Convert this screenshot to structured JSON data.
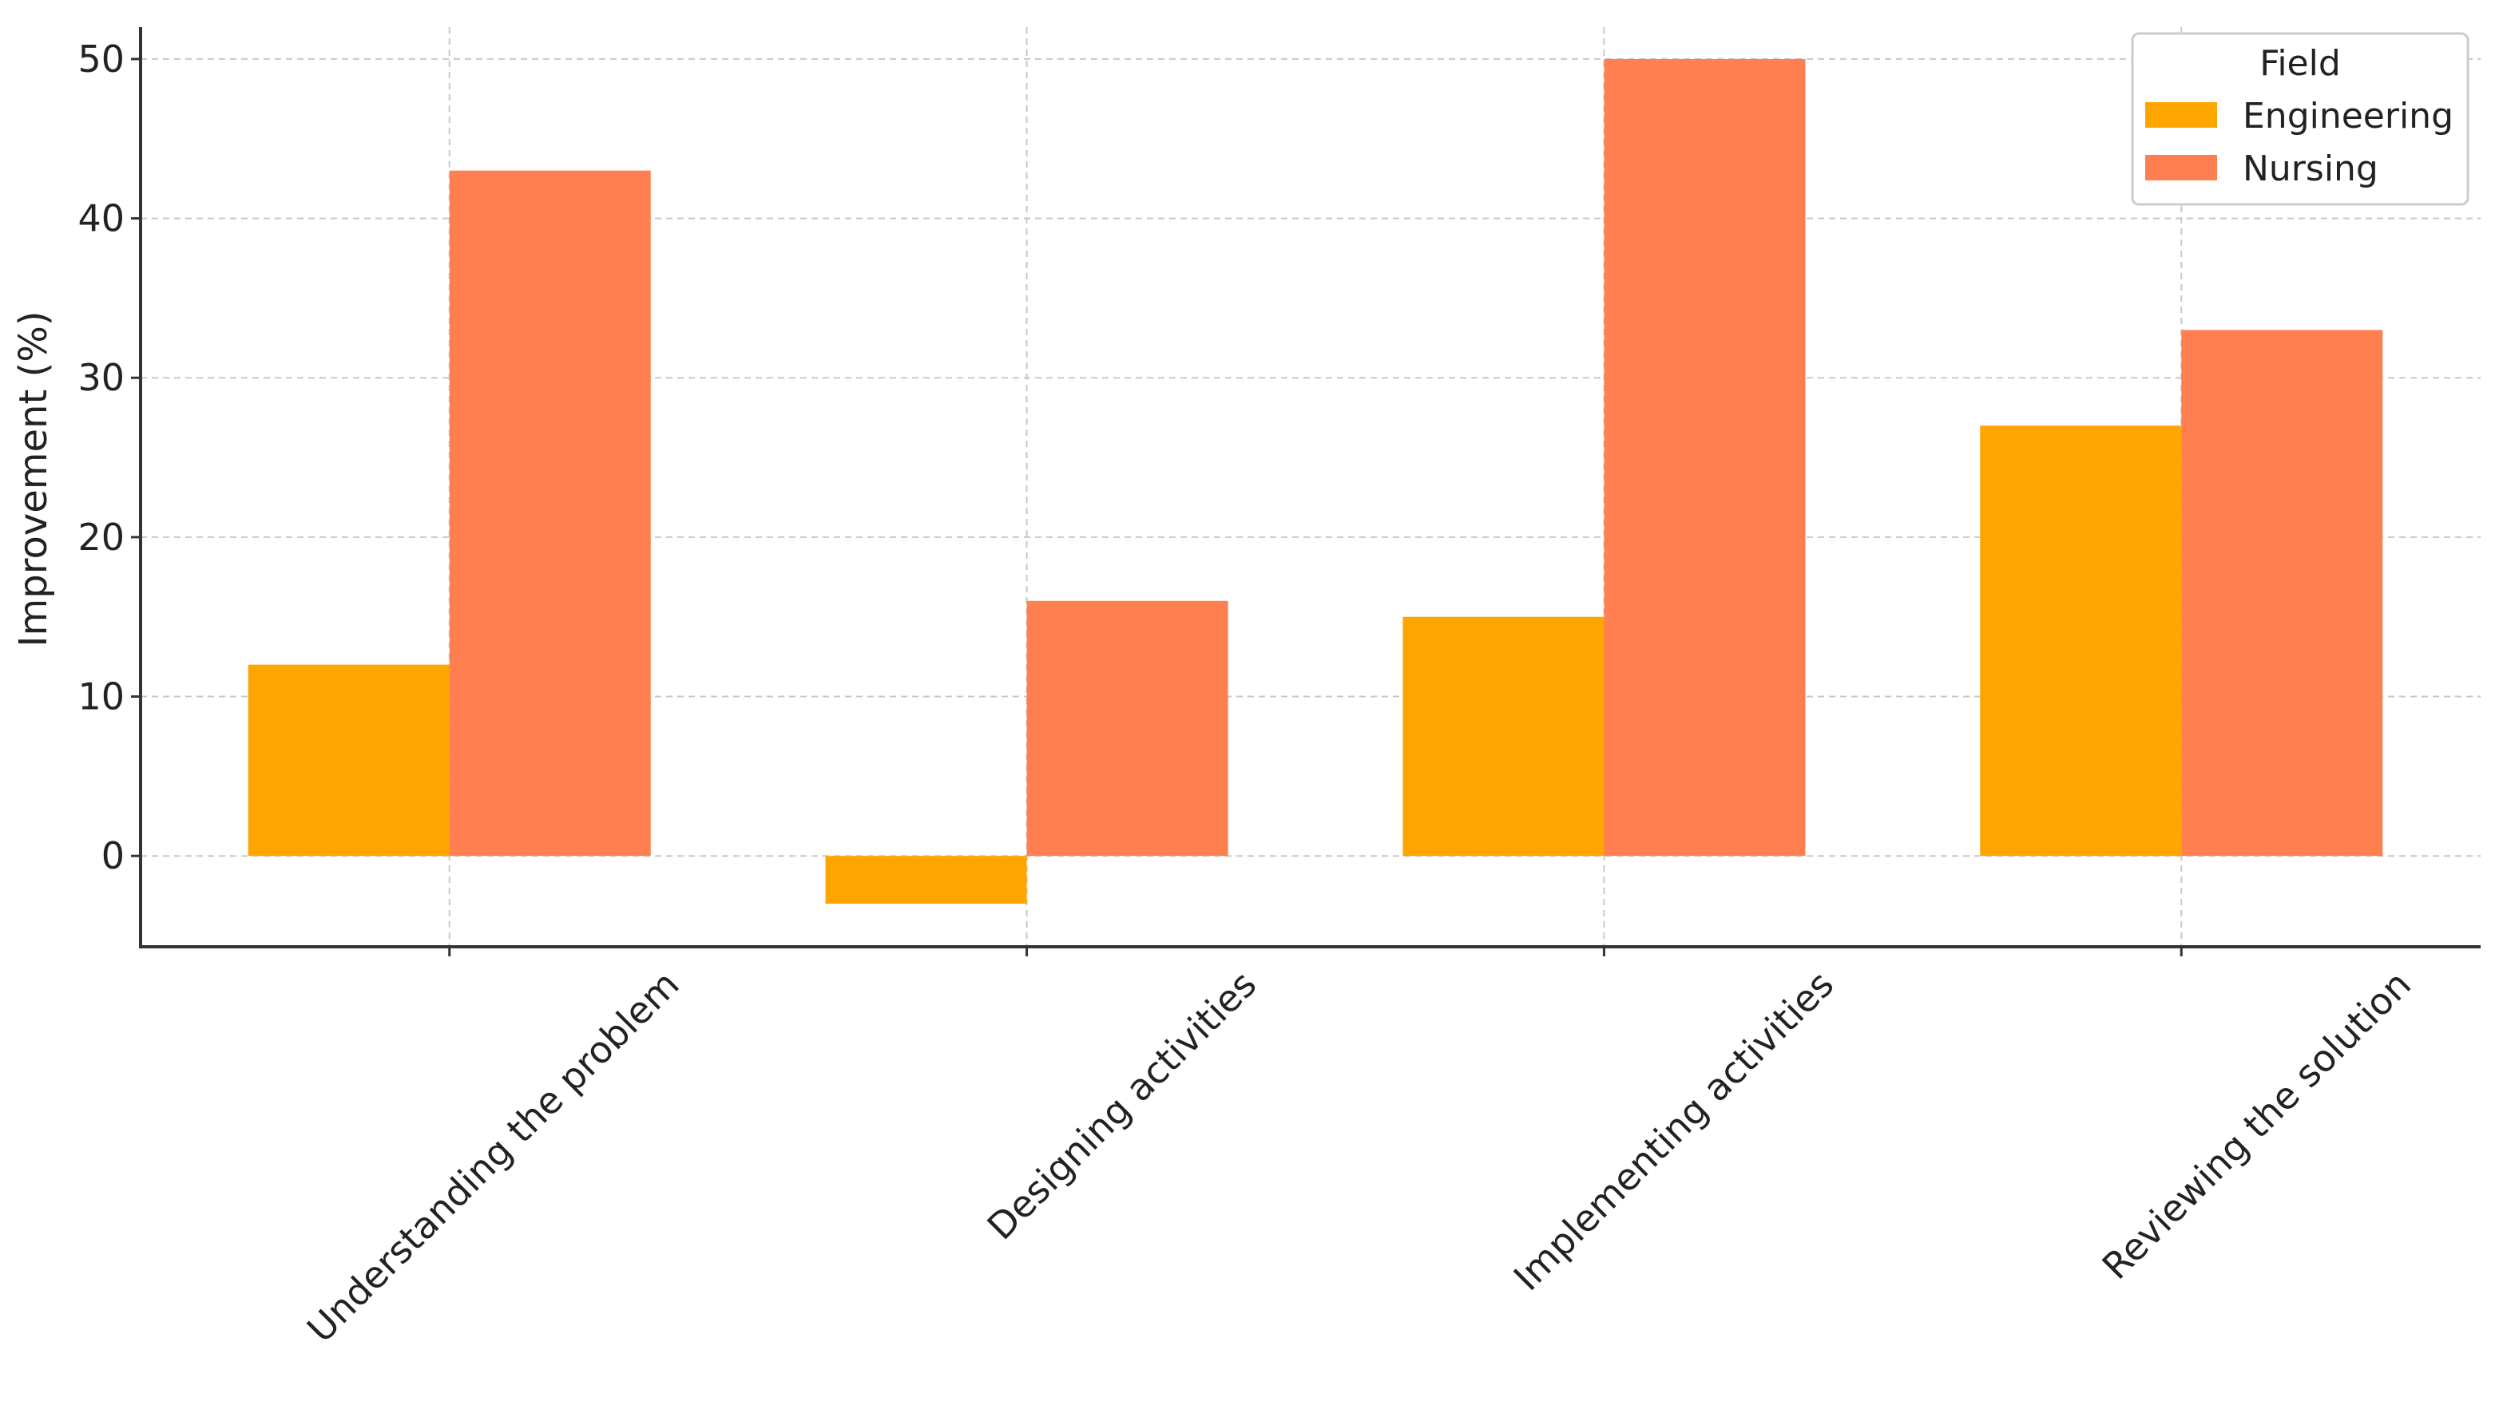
{
  "chart_data": {
    "type": "bar",
    "categories": [
      "Understanding the problem",
      "Designing activities",
      "Implementing activities",
      "Reviewing the solution"
    ],
    "series": [
      {
        "name": "Engineering",
        "values": [
          12,
          -3,
          15,
          27
        ],
        "color": "#FFA500"
      },
      {
        "name": "Nursing",
        "values": [
          43,
          16,
          50,
          33
        ],
        "color": "#FF7F50"
      }
    ],
    "title": "",
    "xlabel": "",
    "ylabel": "Improvement (%)",
    "ylim": [
      -5.7,
      52
    ],
    "yticks": [
      0,
      10,
      20,
      30,
      40,
      50
    ],
    "grid": true,
    "legend": {
      "title": "Field",
      "placement": "top-right"
    }
  }
}
